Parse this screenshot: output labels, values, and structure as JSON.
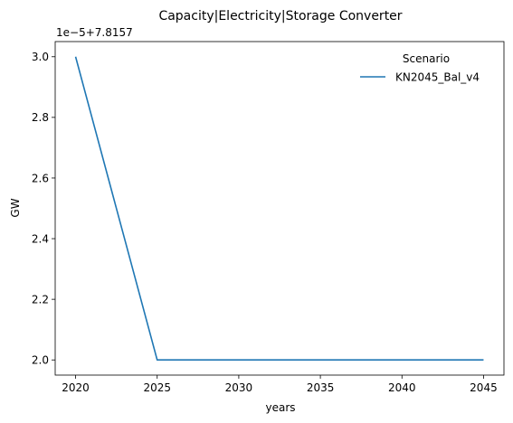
{
  "chart_data": {
    "type": "line",
    "title": "Capacity|Electricity|Storage Converter",
    "xlabel": "years",
    "ylabel": "GW",
    "offset_label": "1e−5+7.8157",
    "xlim": [
      2018.75,
      2046.25
    ],
    "ylim": [
      1.95,
      3.05
    ],
    "x_ticks": [
      2020,
      2025,
      2030,
      2035,
      2040,
      2045
    ],
    "x_tick_labels": [
      "2020",
      "2025",
      "2030",
      "2035",
      "2040",
      "2045"
    ],
    "y_ticks": [
      2.0,
      2.2,
      2.4,
      2.6,
      2.8,
      3.0
    ],
    "y_tick_labels": [
      "2.0",
      "2.2",
      "2.4",
      "2.6",
      "2.8",
      "3.0"
    ],
    "grid": false,
    "legend": {
      "title": "Scenario",
      "placement": "top-right"
    },
    "series": [
      {
        "name": "KN2045_Bal_v4",
        "color": "#1f77b4",
        "x": [
          2020,
          2025,
          2030,
          2035,
          2040,
          2045
        ],
        "y": [
          3.0,
          2.0,
          2.0,
          2.0,
          2.0,
          2.0
        ]
      }
    ]
  }
}
